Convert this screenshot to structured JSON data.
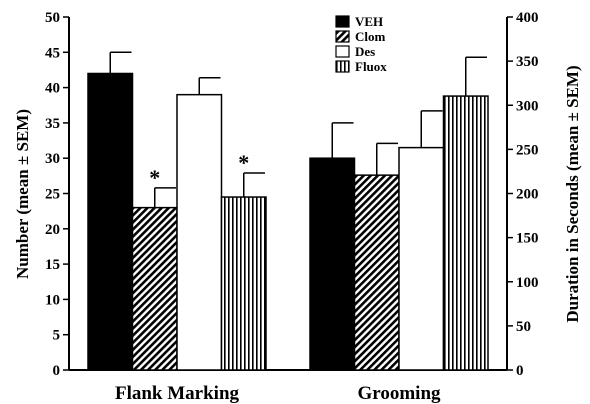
{
  "chart_data": {
    "type": "bar",
    "categories": [
      "Flank Marking",
      "Grooming"
    ],
    "series": [
      {
        "name": "VEH",
        "color": "#000000",
        "pattern": "solid",
        "values": [
          42.0,
          30.0
        ],
        "errors": [
          3.0,
          5.0
        ],
        "significant": [
          false,
          false
        ]
      },
      {
        "name": "Clom",
        "color": "#000000",
        "pattern": "diagonal-hatch",
        "values": [
          23.0,
          27.6
        ],
        "errors": [
          2.8,
          4.5
        ],
        "significant": [
          true,
          false
        ]
      },
      {
        "name": "Des",
        "color": "#ffffff",
        "pattern": "open",
        "values": [
          39.0,
          31.5
        ],
        "errors": [
          2.4,
          5.2
        ],
        "significant": [
          false,
          false
        ]
      },
      {
        "name": "Fluox",
        "color": "#000000",
        "pattern": "vertical-lines",
        "values": [
          24.5,
          38.8
        ],
        "errors": [
          3.4,
          5.5
        ],
        "significant": [
          true,
          false
        ]
      }
    ],
    "significance_marker": "*",
    "ylabel": "Number (mean ± SEM)",
    "ylabel_right": "Duration in Seconds (mean ± SEM)",
    "ylim": [
      0,
      50
    ],
    "ylim_right": [
      0,
      400
    ],
    "yticks": [
      0,
      5,
      10,
      15,
      20,
      25,
      30,
      35,
      40,
      45,
      50
    ],
    "yticks_right": [
      0,
      50,
      100,
      150,
      200,
      250,
      300,
      350,
      400
    ],
    "grid": false,
    "legend_position": "top-center"
  }
}
